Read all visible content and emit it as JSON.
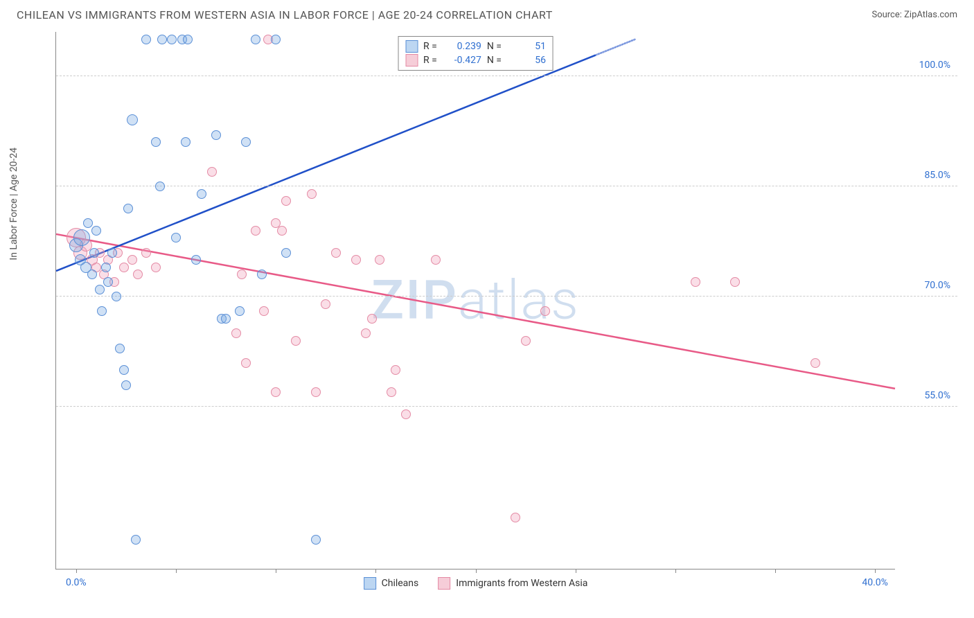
{
  "header": {
    "title": "CHILEAN VS IMMIGRANTS FROM WESTERN ASIA IN LABOR FORCE | AGE 20-24 CORRELATION CHART",
    "source": "Source: ZipAtlas.com"
  },
  "axes": {
    "y_label": "In Labor Force | Age 20-24",
    "y_ticks": [
      55.0,
      70.0,
      85.0,
      100.0
    ],
    "y_tick_labels": [
      "55.0%",
      "70.0%",
      "85.0%",
      "100.0%"
    ],
    "y_range": [
      33.0,
      106.0
    ],
    "x_ticks": [
      0,
      5,
      10,
      15,
      20,
      25,
      30,
      35,
      40
    ],
    "x_tick_labels_shown": {
      "0": "0.0%",
      "40": "40.0%"
    },
    "x_range": [
      -1.0,
      41.0
    ],
    "tick_label_color": "#2f6fd0",
    "grid_color": "#cccccc",
    "axis_color": "#888888"
  },
  "watermark": {
    "text_bold": "ZIP",
    "text_light": "atlas",
    "color": "rgba(120,160,210,0.35)"
  },
  "legend_top": {
    "rows": [
      {
        "swatch_fill": "#bcd6f2",
        "swatch_border": "#5a8fd6",
        "r_label": "R =",
        "r_value": "0.239",
        "n_label": "N =",
        "n_value": "51"
      },
      {
        "swatch_fill": "#f6cdd8",
        "swatch_border": "#e48aa4",
        "r_label": "R =",
        "r_value": "-0.427",
        "n_label": "N =",
        "n_value": "56"
      }
    ],
    "value_color": "#2f6fd0"
  },
  "legend_bottom": {
    "items": [
      {
        "swatch_fill": "#bcd6f2",
        "swatch_border": "#5a8fd6",
        "label": "Chileans"
      },
      {
        "swatch_fill": "#f6cdd8",
        "swatch_border": "#e48aa4",
        "label": "Immigrants from Western Asia"
      }
    ]
  },
  "series": {
    "blue": {
      "fill": "rgba(120,170,225,0.35)",
      "stroke": "#5a8fd6",
      "trend_color": "#2050c8",
      "trend": {
        "x1": -1,
        "y1": 73.5,
        "x2": 28,
        "y2": 105,
        "dash_from_x": 26
      },
      "points": [
        {
          "x": 0.0,
          "y": 77,
          "r": 10
        },
        {
          "x": 0.2,
          "y": 75,
          "r": 8
        },
        {
          "x": 0.3,
          "y": 78,
          "r": 12
        },
        {
          "x": 0.5,
          "y": 74,
          "r": 8
        },
        {
          "x": 0.6,
          "y": 80,
          "r": 7
        },
        {
          "x": 0.8,
          "y": 73,
          "r": 7
        },
        {
          "x": 0.9,
          "y": 76,
          "r": 7
        },
        {
          "x": 1.0,
          "y": 79,
          "r": 7
        },
        {
          "x": 1.2,
          "y": 71,
          "r": 7
        },
        {
          "x": 1.3,
          "y": 68,
          "r": 7
        },
        {
          "x": 1.5,
          "y": 74,
          "r": 7
        },
        {
          "x": 1.6,
          "y": 72,
          "r": 7
        },
        {
          "x": 1.8,
          "y": 76,
          "r": 7
        },
        {
          "x": 2.0,
          "y": 70,
          "r": 7
        },
        {
          "x": 2.2,
          "y": 63,
          "r": 7
        },
        {
          "x": 2.4,
          "y": 60,
          "r": 7
        },
        {
          "x": 2.5,
          "y": 58,
          "r": 7
        },
        {
          "x": 2.6,
          "y": 82,
          "r": 7
        },
        {
          "x": 2.8,
          "y": 94,
          "r": 8
        },
        {
          "x": 3.0,
          "y": 37,
          "r": 7
        },
        {
          "x": 3.5,
          "y": 105,
          "r": 7
        },
        {
          "x": 4.0,
          "y": 91,
          "r": 7
        },
        {
          "x": 4.2,
          "y": 85,
          "r": 7
        },
        {
          "x": 4.3,
          "y": 105,
          "r": 7
        },
        {
          "x": 4.8,
          "y": 105,
          "r": 7
        },
        {
          "x": 5.0,
          "y": 78,
          "r": 7
        },
        {
          "x": 5.3,
          "y": 105,
          "r": 7
        },
        {
          "x": 5.5,
          "y": 91,
          "r": 7
        },
        {
          "x": 5.6,
          "y": 105,
          "r": 7
        },
        {
          "x": 6.0,
          "y": 75,
          "r": 7
        },
        {
          "x": 6.3,
          "y": 84,
          "r": 7
        },
        {
          "x": 7.0,
          "y": 92,
          "r": 7
        },
        {
          "x": 7.3,
          "y": 67,
          "r": 7
        },
        {
          "x": 7.5,
          "y": 67,
          "r": 7
        },
        {
          "x": 8.2,
          "y": 68,
          "r": 7
        },
        {
          "x": 8.5,
          "y": 91,
          "r": 7
        },
        {
          "x": 9.0,
          "y": 105,
          "r": 7
        },
        {
          "x": 9.3,
          "y": 73,
          "r": 7
        },
        {
          "x": 10.0,
          "y": 105,
          "r": 7
        },
        {
          "x": 10.5,
          "y": 76,
          "r": 7
        },
        {
          "x": 12.0,
          "y": 37,
          "r": 7
        },
        {
          "x": 18.0,
          "y": 103,
          "r": 7
        }
      ]
    },
    "pink": {
      "fill": "rgba(240,160,185,0.35)",
      "stroke": "#e48aa4",
      "trend_color": "#e85a87",
      "trend": {
        "x1": -1,
        "y1": 78.5,
        "x2": 41,
        "y2": 57.5
      },
      "points": [
        {
          "x": 0.0,
          "y": 78,
          "r": 14
        },
        {
          "x": 0.2,
          "y": 76,
          "r": 10
        },
        {
          "x": 0.5,
          "y": 77,
          "r": 9
        },
        {
          "x": 0.8,
          "y": 75,
          "r": 8
        },
        {
          "x": 1.0,
          "y": 74,
          "r": 7
        },
        {
          "x": 1.2,
          "y": 76,
          "r": 7
        },
        {
          "x": 1.4,
          "y": 73,
          "r": 7
        },
        {
          "x": 1.6,
          "y": 75,
          "r": 7
        },
        {
          "x": 1.9,
          "y": 72,
          "r": 7
        },
        {
          "x": 2.1,
          "y": 76,
          "r": 7
        },
        {
          "x": 2.4,
          "y": 74,
          "r": 7
        },
        {
          "x": 2.8,
          "y": 75,
          "r": 7
        },
        {
          "x": 3.1,
          "y": 73,
          "r": 7
        },
        {
          "x": 3.5,
          "y": 76,
          "r": 7
        },
        {
          "x": 4.0,
          "y": 74,
          "r": 7
        },
        {
          "x": 6.8,
          "y": 87,
          "r": 7
        },
        {
          "x": 8.0,
          "y": 65,
          "r": 7
        },
        {
          "x": 8.3,
          "y": 73,
          "r": 7
        },
        {
          "x": 8.5,
          "y": 61,
          "r": 7
        },
        {
          "x": 9.0,
          "y": 79,
          "r": 7
        },
        {
          "x": 9.4,
          "y": 68,
          "r": 7
        },
        {
          "x": 9.6,
          "y": 105,
          "r": 7
        },
        {
          "x": 10.0,
          "y": 80,
          "r": 7
        },
        {
          "x": 10.0,
          "y": 57,
          "r": 7
        },
        {
          "x": 10.3,
          "y": 79,
          "r": 7
        },
        {
          "x": 10.5,
          "y": 83,
          "r": 7
        },
        {
          "x": 11.0,
          "y": 64,
          "r": 7
        },
        {
          "x": 11.8,
          "y": 84,
          "r": 7
        },
        {
          "x": 12.0,
          "y": 57,
          "r": 7
        },
        {
          "x": 12.5,
          "y": 69,
          "r": 7
        },
        {
          "x": 13.0,
          "y": 76,
          "r": 7
        },
        {
          "x": 14.0,
          "y": 75,
          "r": 7
        },
        {
          "x": 14.5,
          "y": 65,
          "r": 7
        },
        {
          "x": 14.8,
          "y": 67,
          "r": 7
        },
        {
          "x": 15.2,
          "y": 75,
          "r": 7
        },
        {
          "x": 15.8,
          "y": 57,
          "r": 7
        },
        {
          "x": 16.0,
          "y": 60,
          "r": 7
        },
        {
          "x": 16.5,
          "y": 54,
          "r": 7
        },
        {
          "x": 18.0,
          "y": 75,
          "r": 7
        },
        {
          "x": 22.0,
          "y": 40,
          "r": 7
        },
        {
          "x": 22.5,
          "y": 64,
          "r": 7
        },
        {
          "x": 23.5,
          "y": 68,
          "r": 7
        },
        {
          "x": 31.0,
          "y": 72,
          "r": 7
        },
        {
          "x": 33.0,
          "y": 72,
          "r": 7
        },
        {
          "x": 37.0,
          "y": 61,
          "r": 7
        }
      ]
    }
  }
}
